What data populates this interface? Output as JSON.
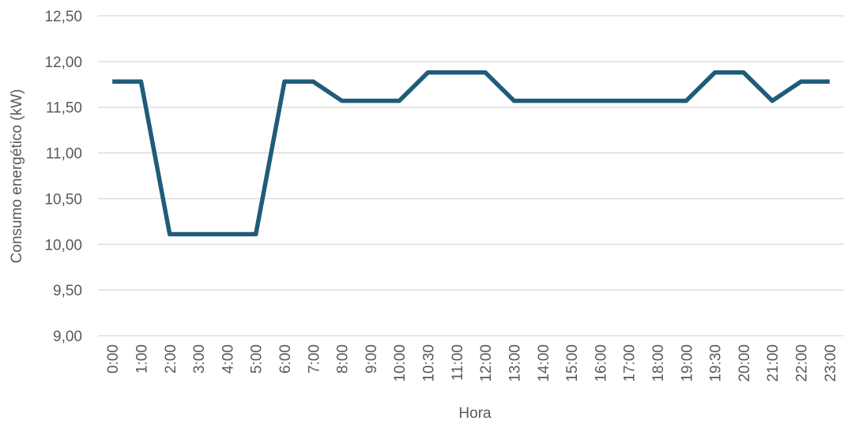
{
  "chart_data": {
    "type": "line",
    "title": "",
    "xlabel": "Hora",
    "ylabel": "Consumo energético (kW)",
    "categories": [
      "0:00",
      "1:00",
      "2:00",
      "3:00",
      "4:00",
      "5:00",
      "6:00",
      "7:00",
      "8:00",
      "9:00",
      "10:00",
      "10:30",
      "11:00",
      "12:00",
      "13:00",
      "14:00",
      "15:00",
      "16:00",
      "17:00",
      "18:00",
      "19:00",
      "19:30",
      "20:00",
      "21:00",
      "22:00",
      "23:00"
    ],
    "series": [
      {
        "values": [
          11.78,
          11.78,
          10.11,
          10.11,
          10.11,
          10.11,
          11.78,
          11.78,
          11.57,
          11.57,
          11.57,
          11.88,
          11.88,
          11.88,
          11.57,
          11.57,
          11.57,
          11.57,
          11.57,
          11.57,
          11.57,
          11.88,
          11.88,
          11.57,
          11.78,
          11.78
        ],
        "color": "#1f5c7a"
      }
    ],
    "yticks": [
      "9,00",
      "9,50",
      "10,00",
      "10,50",
      "11,00",
      "11,50",
      "12,00",
      "12,50"
    ],
    "ylim": [
      9.0,
      12.5
    ],
    "grid": true,
    "legend": "none"
  }
}
